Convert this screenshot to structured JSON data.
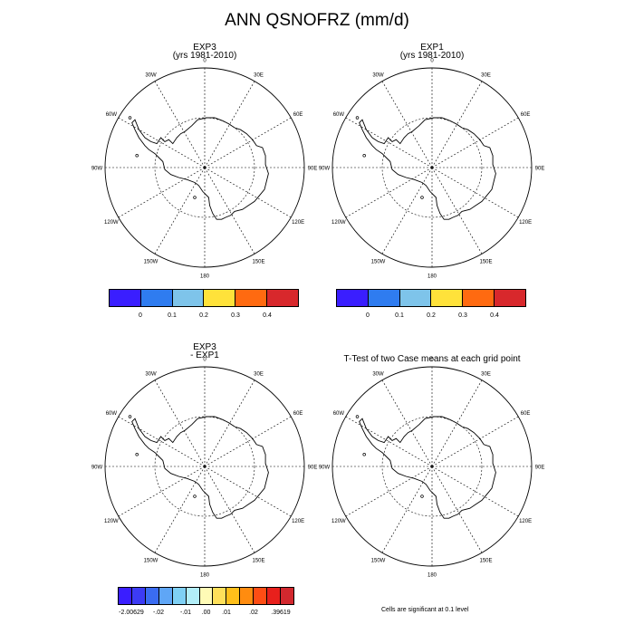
{
  "figure": {
    "title": "ANN QSNOFRZ (mm/d)"
  },
  "panels": [
    {
      "id": "p1",
      "title_lines": [
        "EXP3",
        "(yrs 1981-2010)"
      ]
    },
    {
      "id": "p2",
      "title_lines": [
        "EXP1",
        "(yrs 1981-2010)"
      ]
    },
    {
      "id": "p3",
      "title_lines": [
        "EXP3",
        "- EXP1"
      ]
    },
    {
      "id": "p4",
      "title_lines": [
        "T-Test of two Case means at each grid point"
      ]
    }
  ],
  "longitude_labels": [
    "0",
    "30E",
    "60E",
    "90E",
    "120E",
    "150E",
    "180",
    "150W",
    "120W",
    "90W",
    "60W",
    "30W"
  ],
  "colorbar_top": {
    "colors": [
      "#3a1eff",
      "#2f7cf0",
      "#7ec4ea",
      "#ffe23a",
      "#ff6a10",
      "#d8282c"
    ],
    "labels": [
      "0",
      "0.1",
      "0.2",
      "0.3",
      "0.4"
    ]
  },
  "colorbar_diff": {
    "colors": [
      "#3a1eff",
      "#3c3bf5",
      "#3a6cf2",
      "#5fa6f6",
      "#7fd0f4",
      "#b2eef8",
      "#fffbb6",
      "#ffe05a",
      "#ffbf1a",
      "#ff8c0f",
      "#ff4d14",
      "#e8201c",
      "#d2282e"
    ],
    "labels": [
      "-2.00629",
      "-.02",
      "-.01",
      ".00",
      ".01",
      ".02",
      ".39619"
    ]
  },
  "note": "Cells are significant at 0.1 level"
}
